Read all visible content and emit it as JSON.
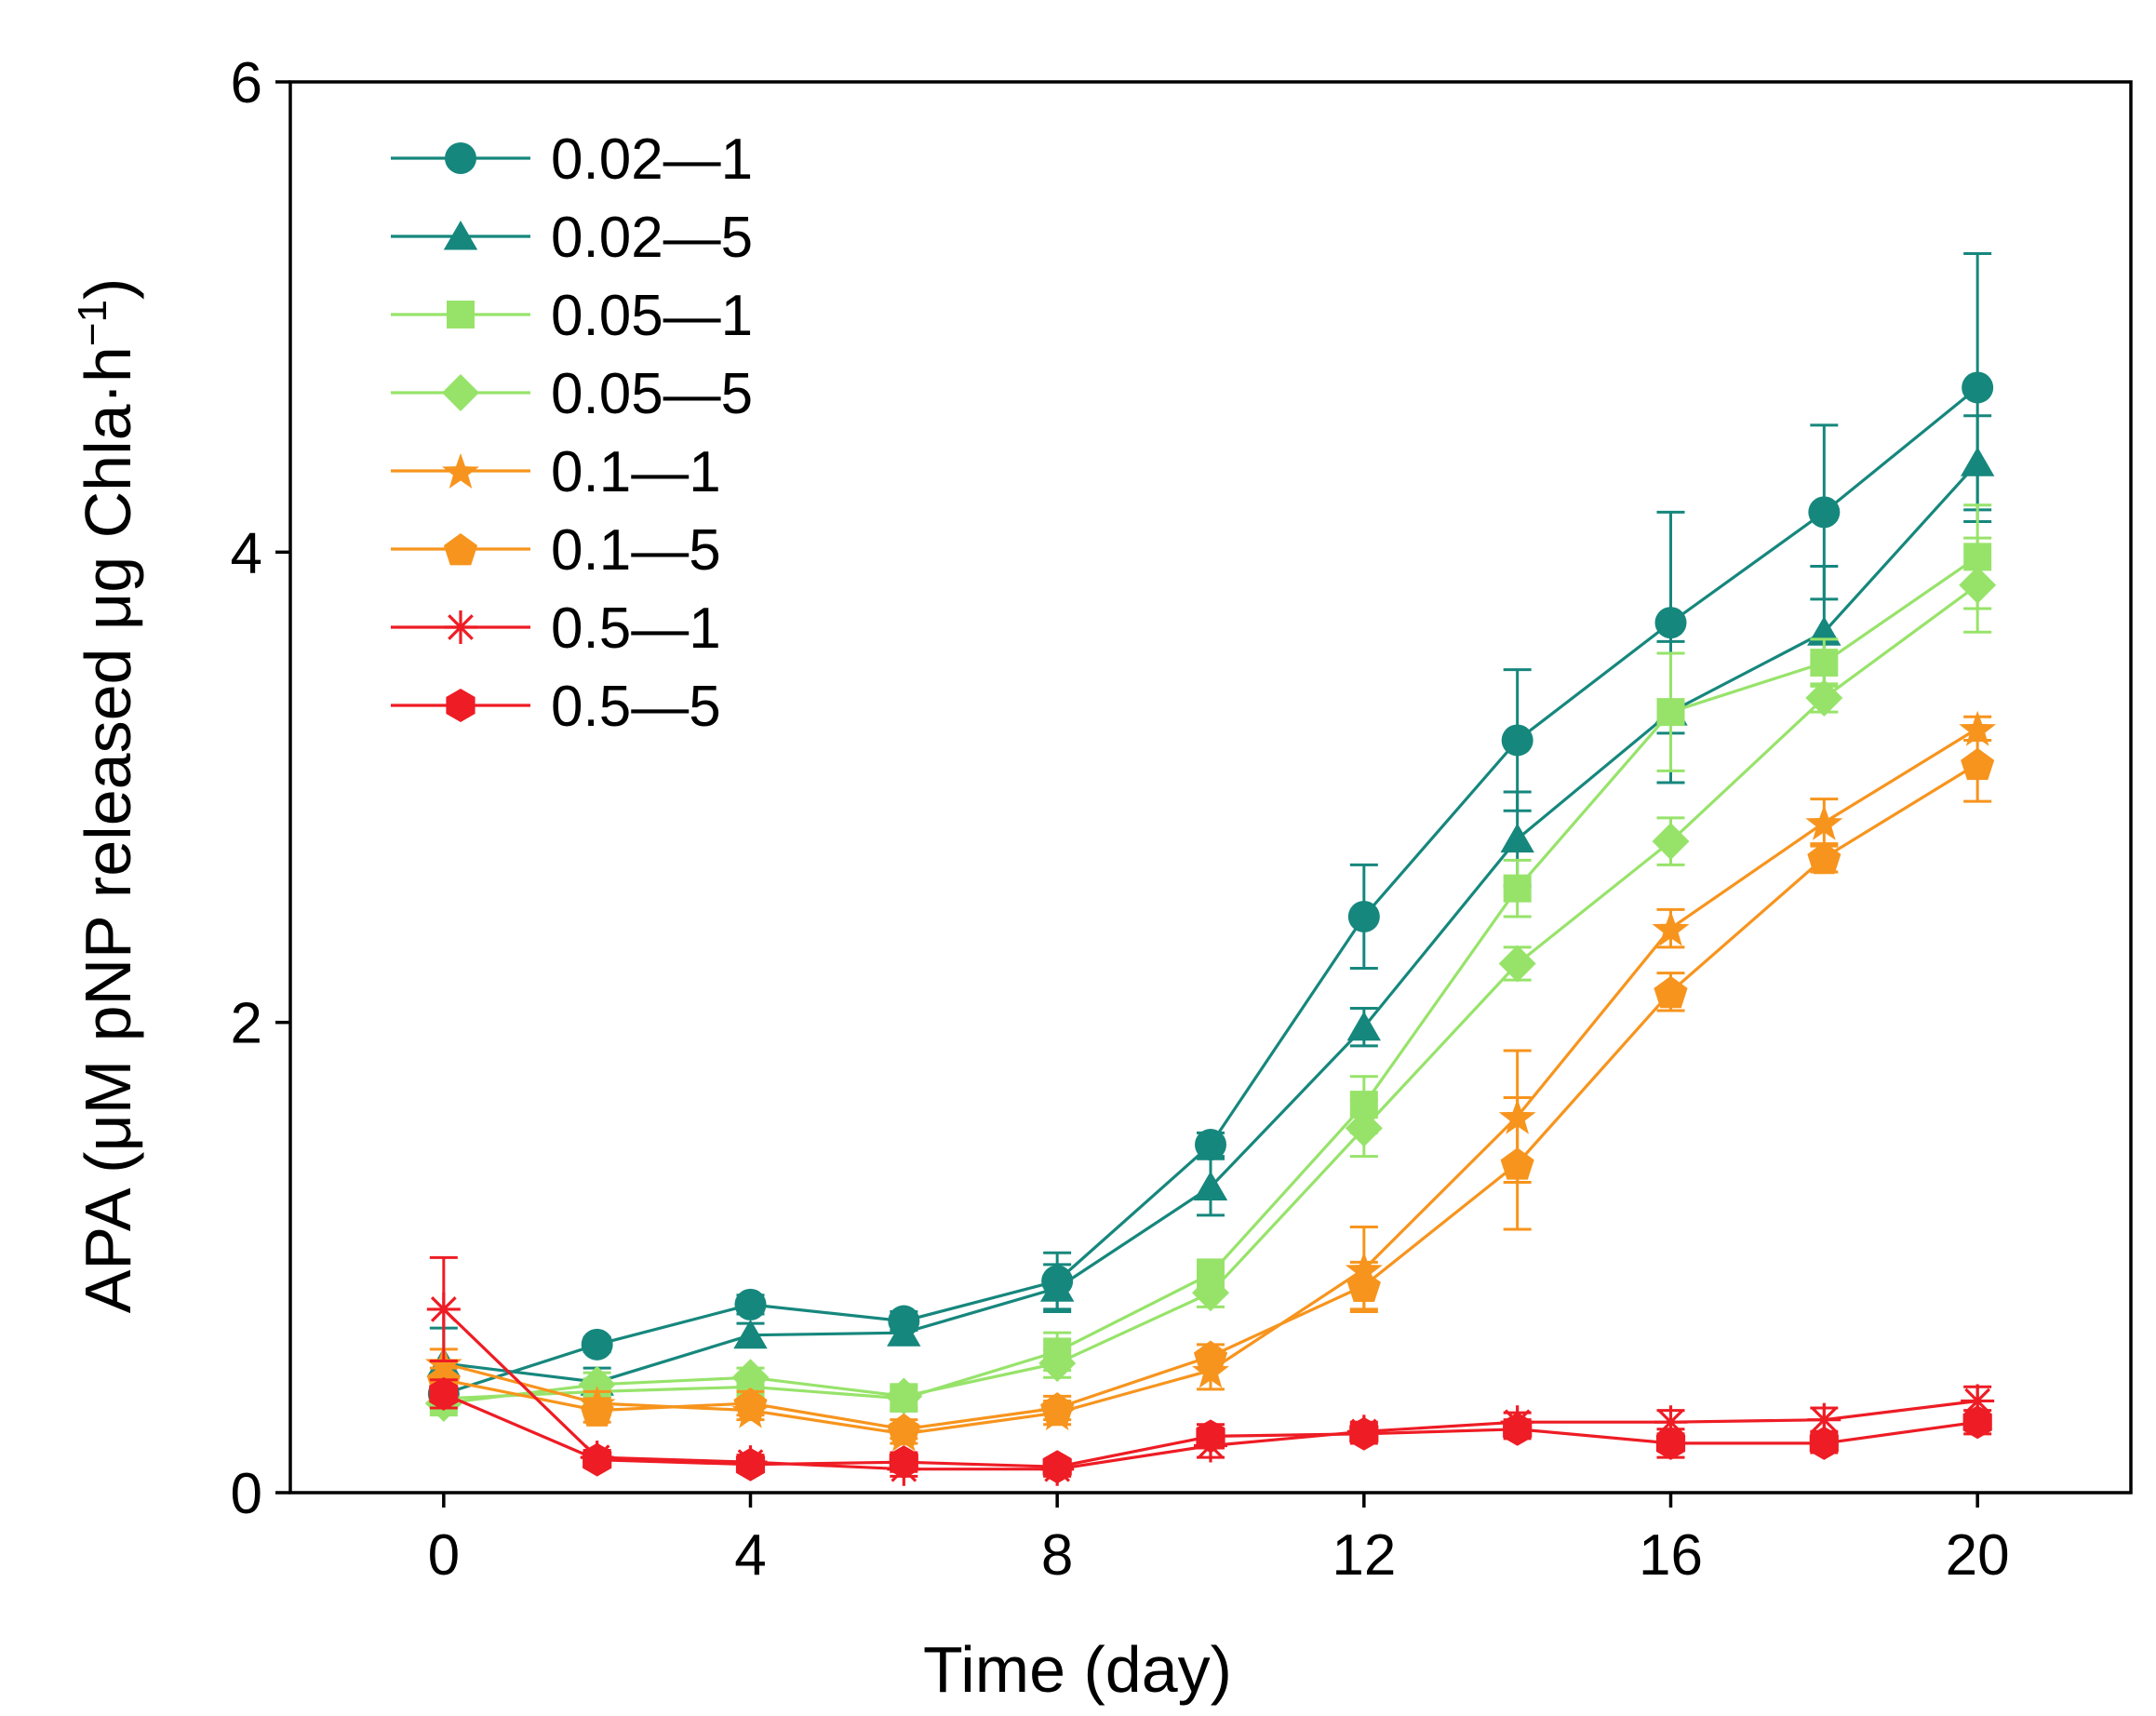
{
  "chart_data": {
    "type": "line",
    "title": "",
    "xlabel": "Time (day)",
    "ylabel": "APA (μM pNP released μg Chla·h",
    "ylabel_superscript": "−1",
    "ylabel_close": ")",
    "xlim": [
      -2,
      22
    ],
    "ylim": [
      0,
      6
    ],
    "xticks": [
      0,
      4,
      8,
      12,
      16,
      20
    ],
    "yticks": [
      0,
      2,
      4,
      6
    ],
    "legend_position": "top-left",
    "x": [
      0,
      2,
      4,
      6,
      8,
      10,
      12,
      14,
      16,
      18,
      20
    ],
    "series": [
      {
        "name": "0.02—1",
        "color": "#16877d",
        "marker": "circle",
        "values": [
          0.42,
          0.63,
          0.8,
          0.73,
          0.9,
          1.48,
          2.45,
          3.2,
          3.7,
          4.17,
          4.7
        ],
        "errors": [
          0.05,
          0.03,
          0.04,
          0.04,
          0.12,
          0.05,
          0.22,
          0.3,
          0.47,
          0.37,
          0.57
        ]
      },
      {
        "name": "0.02—5",
        "color": "#16877d",
        "marker": "triangle",
        "values": [
          0.55,
          0.47,
          0.67,
          0.68,
          0.87,
          1.3,
          1.98,
          2.78,
          3.32,
          3.66,
          4.38
        ],
        "errors": [
          0.15,
          0.06,
          0.05,
          0.05,
          0.1,
          0.12,
          0.08,
          0.2,
          0.3,
          0.28,
          0.2
        ]
      },
      {
        "name": "0.05—1",
        "color": "#97e36a",
        "marker": "square",
        "values": [
          0.4,
          0.43,
          0.45,
          0.4,
          0.6,
          0.93,
          1.65,
          2.57,
          3.32,
          3.53,
          3.98
        ],
        "errors": [
          0.06,
          0.05,
          0.04,
          0.05,
          0.08,
          0.06,
          0.12,
          0.12,
          0.25,
          0.1,
          0.22
        ]
      },
      {
        "name": "0.05—5",
        "color": "#97e36a",
        "marker": "diamond",
        "values": [
          0.38,
          0.46,
          0.49,
          0.41,
          0.55,
          0.85,
          1.55,
          2.25,
          2.77,
          3.38,
          3.86
        ],
        "errors": [
          0.05,
          0.05,
          0.04,
          0.05,
          0.06,
          0.06,
          0.12,
          0.07,
          0.1,
          0.06,
          0.2
        ]
      },
      {
        "name": "0.1—1",
        "color": "#f7941d",
        "marker": "star",
        "values": [
          0.55,
          0.38,
          0.35,
          0.25,
          0.34,
          0.52,
          0.95,
          1.6,
          2.4,
          2.85,
          3.25
        ],
        "errors": [
          0.06,
          0.05,
          0.04,
          0.04,
          0.05,
          0.08,
          0.18,
          0.28,
          0.08,
          0.1,
          0.05
        ]
      },
      {
        "name": "0.1—5",
        "color": "#f7941d",
        "marker": "pentagon",
        "values": [
          0.48,
          0.35,
          0.38,
          0.27,
          0.36,
          0.58,
          0.88,
          1.4,
          2.13,
          2.7,
          3.1
        ],
        "errors": [
          0.05,
          0.05,
          0.05,
          0.04,
          0.05,
          0.05,
          0.1,
          0.28,
          0.08,
          0.06,
          0.16
        ]
      },
      {
        "name": "0.5—1",
        "color": "#ee1c24",
        "marker": "asterisk",
        "values": [
          0.78,
          0.15,
          0.13,
          0.1,
          0.1,
          0.2,
          0.26,
          0.3,
          0.3,
          0.31,
          0.39
        ],
        "errors": [
          0.22,
          0.03,
          0.03,
          0.03,
          0.03,
          0.05,
          0.04,
          0.04,
          0.05,
          0.05,
          0.06
        ]
      },
      {
        "name": "0.5—5",
        "color": "#ee1c24",
        "marker": "hexagon",
        "values": [
          0.42,
          0.14,
          0.12,
          0.13,
          0.11,
          0.24,
          0.25,
          0.27,
          0.21,
          0.21,
          0.3
        ],
        "errors": [
          0.06,
          0.03,
          0.03,
          0.04,
          0.03,
          0.05,
          0.04,
          0.04,
          0.06,
          0.04,
          0.05
        ]
      }
    ]
  }
}
